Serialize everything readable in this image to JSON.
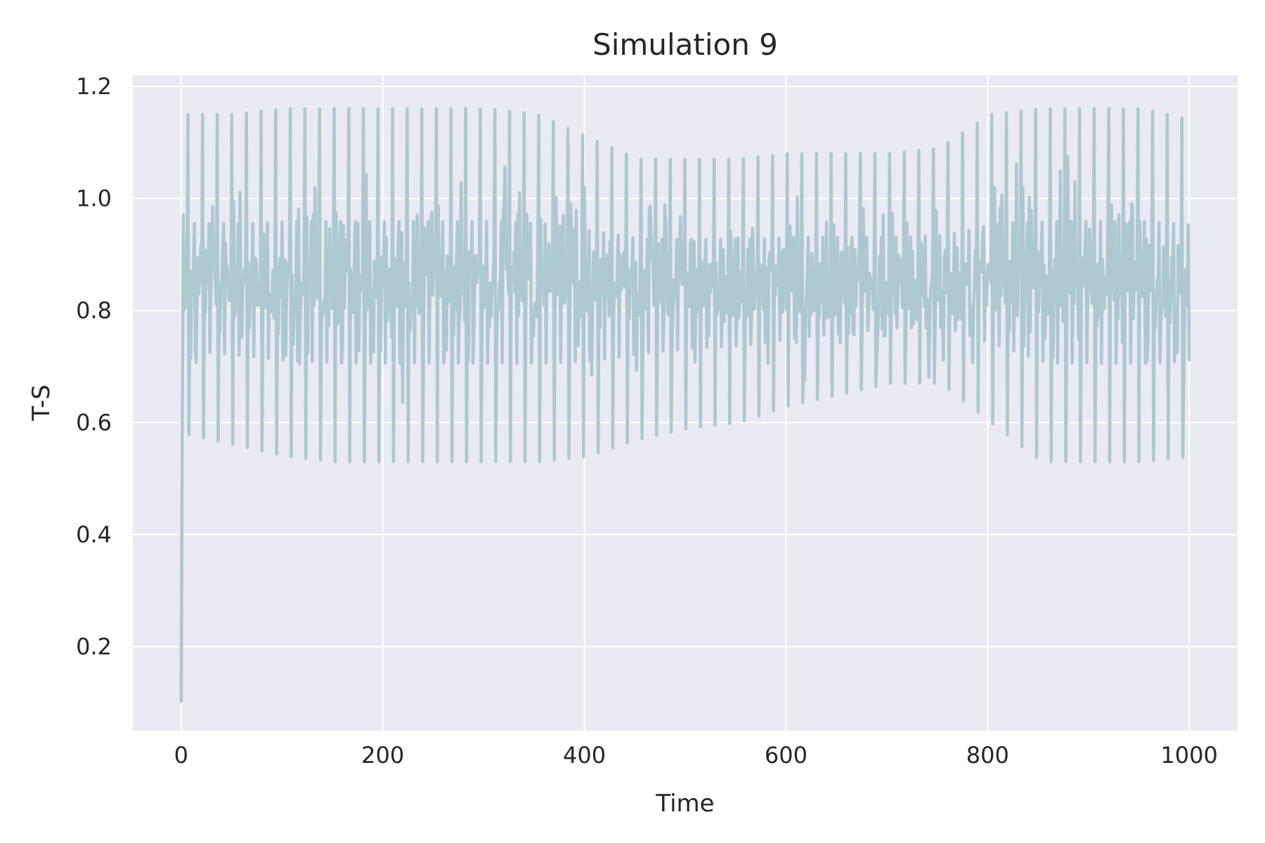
{
  "chart_data": {
    "type": "line",
    "title": "Simulation 9",
    "xlabel": "Time",
    "ylabel": "T-S",
    "xlim": [
      -48,
      1048
    ],
    "ylim": [
      0.05,
      1.22
    ],
    "xticks": [
      0,
      200,
      400,
      600,
      800,
      1000
    ],
    "xtick_labels": [
      "0",
      "200",
      "400",
      "600",
      "800",
      "1000"
    ],
    "yticks": [
      0.2,
      0.4,
      0.6,
      0.8,
      1.0,
      1.2
    ],
    "ytick_labels": [
      "0.2",
      "0.4",
      "0.6",
      "0.8",
      "1.0",
      "1.2"
    ],
    "grid": true,
    "colors": {
      "background": "#eaeaf2",
      "grid": "#ffffff",
      "line": "#adc9cd",
      "text": "#262626"
    },
    "series": [
      {
        "color": "#adc9cd",
        "oscillation_period": 14.5,
        "x": [
          0,
          1,
          2,
          3,
          5,
          50,
          100,
          150,
          200,
          250,
          300,
          350,
          400,
          450,
          500,
          550,
          600,
          650,
          700,
          750,
          800,
          850,
          900,
          950,
          1000
        ],
        "y": [
          0.1,
          0.58,
          0.97,
          0.8,
          0.85,
          0.85,
          0.85,
          0.85,
          0.85,
          0.85,
          0.85,
          0.85,
          0.85,
          0.84,
          0.84,
          0.84,
          0.85,
          0.85,
          0.85,
          0.85,
          0.85,
          0.85,
          0.85,
          0.85,
          0.85
        ],
        "peak_y": [
          1.15,
          1.15,
          1.16,
          1.16,
          1.16,
          1.16,
          1.16,
          1.15,
          1.11,
          1.07,
          1.07,
          1.07,
          1.08,
          1.08,
          1.08,
          1.09,
          1.15,
          1.16,
          1.16,
          1.16,
          1.14
        ],
        "trough_y": [
          0.58,
          0.56,
          0.54,
          0.53,
          0.53,
          0.53,
          0.53,
          0.53,
          0.54,
          0.57,
          0.59,
          0.6,
          0.63,
          0.65,
          0.67,
          0.67,
          0.6,
          0.53,
          0.53,
          0.53,
          0.54
        ],
        "envelope_x": [
          0,
          50,
          100,
          150,
          200,
          250,
          300,
          350,
          400,
          450,
          500,
          550,
          600,
          650,
          700,
          750,
          800,
          850,
          900,
          950,
          1000
        ]
      }
    ]
  }
}
